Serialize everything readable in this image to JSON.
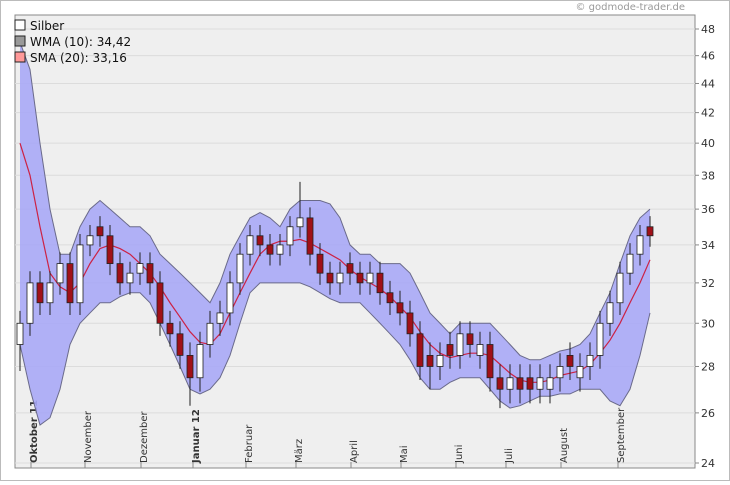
{
  "chart_data": {
    "type": "candlestick",
    "watermark": "© godmode-trader.de",
    "legend": "top-left",
    "log_scale": true,
    "grid": true,
    "ylim": [
      24,
      48
    ],
    "yticks": [
      24,
      26,
      28,
      30,
      32,
      34,
      36,
      38,
      40,
      42,
      44,
      46,
      48
    ],
    "xlim": [
      -0.5,
      67.5
    ],
    "xticks": [
      {
        "value": 1.7,
        "label": "Oktober 11",
        "bold": true
      },
      {
        "value": 7.1,
        "label": "November"
      },
      {
        "value": 12.7,
        "label": "Dezember"
      },
      {
        "value": 17.9,
        "label": "Januar 12",
        "bold": true
      },
      {
        "value": 23.2,
        "label": "Februar"
      },
      {
        "value": 28.2,
        "label": "März"
      },
      {
        "value": 33.7,
        "label": "April"
      },
      {
        "value": 38.7,
        "label": "Mai"
      },
      {
        "value": 44.2,
        "label": "Juni"
      },
      {
        "value": 49.2,
        "label": "Juli"
      },
      {
        "value": 54.7,
        "label": "August"
      },
      {
        "value": 60.4,
        "label": "September"
      }
    ],
    "x": [
      0,
      1,
      2,
      3,
      4,
      5,
      6,
      7,
      8,
      9,
      10,
      11,
      12,
      13,
      14,
      15,
      16,
      17,
      18,
      19,
      20,
      21,
      22,
      23,
      24,
      25,
      26,
      27,
      28,
      29,
      30,
      31,
      32,
      33,
      34,
      35,
      36,
      37,
      38,
      39,
      40,
      41,
      42,
      43,
      44,
      45,
      46,
      47,
      48,
      49,
      50,
      51,
      52,
      53,
      54,
      55,
      56,
      57,
      58,
      59,
      60,
      61,
      62,
      63
    ],
    "candles": {
      "name": "Silber",
      "color": "#ffffff",
      "down_color": "#a01018",
      "open": [
        29,
        30,
        32,
        31,
        32,
        33,
        31,
        34,
        35,
        34.5,
        33,
        32,
        32.5,
        33,
        32,
        30,
        29.5,
        28.5,
        27.5,
        29,
        30,
        30.5,
        32,
        33.5,
        34.5,
        34,
        33.5,
        34,
        35,
        35.5,
        33.5,
        32.5,
        32,
        33,
        32.5,
        32,
        32.5,
        31.5,
        31,
        30.5,
        29.5,
        28.5,
        28,
        29,
        28.5,
        29.5,
        28.5,
        29,
        27.5,
        27,
        27.5,
        27.5,
        27,
        27,
        27.5,
        28.5,
        27.5,
        28,
        28.5,
        30,
        31,
        32.5,
        33.5,
        35
      ],
      "high": [
        30.6,
        32.6,
        32.6,
        32.6,
        33.6,
        33.6,
        34.6,
        35.1,
        35.6,
        35.1,
        33.6,
        33.1,
        33.6,
        33.6,
        32.6,
        30.6,
        30.1,
        29.1,
        29.6,
        30.6,
        31.1,
        32.6,
        34.1,
        35.1,
        35.1,
        34.6,
        34.6,
        35.6,
        37.6,
        36.1,
        34.1,
        33.1,
        33.1,
        33.6,
        33.1,
        33.1,
        33.1,
        32.1,
        31.6,
        31.1,
        30.1,
        29.1,
        29.1,
        29.6,
        30.1,
        30.1,
        29.6,
        29.6,
        28.1,
        28.1,
        28.1,
        28.1,
        28.1,
        28.1,
        28.6,
        29.1,
        28.6,
        29.1,
        30.6,
        31.6,
        33.1,
        34.1,
        35.1,
        35.6
      ],
      "low": [
        27.8,
        29.4,
        30.4,
        30.4,
        31.4,
        30.4,
        30.4,
        33.4,
        33.9,
        32.4,
        31.4,
        31.4,
        31.9,
        31.4,
        29.4,
        28.9,
        27.9,
        26.3,
        26.9,
        28.4,
        29.4,
        29.9,
        31.4,
        32.9,
        33.4,
        32.9,
        32.9,
        33.4,
        34.4,
        32.9,
        31.9,
        31.4,
        31.4,
        31.9,
        31.4,
        31.4,
        30.9,
        30.4,
        29.9,
        28.9,
        27.4,
        27.0,
        27.4,
        27.9,
        27.9,
        28.4,
        27.9,
        26.9,
        26.2,
        26.4,
        26.4,
        26.4,
        26.4,
        26.4,
        26.9,
        27.4,
        26.9,
        27.4,
        27.9,
        29.4,
        30.4,
        31.9,
        32.9,
        33.9
      ],
      "close": [
        30,
        32,
        31,
        32,
        33,
        31,
        34,
        34.5,
        34.5,
        33,
        32,
        32.5,
        33,
        32,
        30,
        29.5,
        28.5,
        27.5,
        29,
        30,
        30.5,
        32,
        33.5,
        34.5,
        34,
        33.5,
        34,
        35,
        35.5,
        33.5,
        32.5,
        32,
        32.5,
        32.5,
        32,
        32.5,
        31.5,
        31,
        30.5,
        29.5,
        28,
        28,
        28.5,
        28.5,
        29.5,
        29,
        29,
        27.5,
        27,
        27.5,
        27,
        27,
        27.5,
        27.5,
        28,
        28,
        28,
        28.5,
        30,
        31,
        32.5,
        33.5,
        34.5,
        34.5
      ]
    },
    "band": {
      "name": "WMA (10): 34,42",
      "color": "#999999",
      "fill": "#a8a8f6",
      "stroke": "#6a6a8a",
      "upper": [
        47,
        45,
        40,
        36,
        33.5,
        33.5,
        35,
        36,
        36.5,
        36,
        35.5,
        35,
        35,
        34.5,
        33.5,
        33,
        32.5,
        32,
        31.5,
        31,
        32,
        33.5,
        34.5,
        35.5,
        35.8,
        35.5,
        35,
        36,
        36.5,
        36.5,
        36.5,
        36.3,
        35.5,
        34,
        33.5,
        33.5,
        33,
        33,
        33,
        32.5,
        31.5,
        30.5,
        30,
        29.5,
        30,
        30,
        30,
        30,
        29.5,
        29,
        28.5,
        28.3,
        28.3,
        28.5,
        28.7,
        28.8,
        29,
        29.5,
        30.5,
        31.5,
        33,
        34.5,
        35.5,
        36
      ],
      "lower": [
        29,
        27,
        25.5,
        25.8,
        27,
        29,
        30,
        30.5,
        31,
        31,
        31.3,
        31.5,
        31.5,
        31,
        30,
        29,
        28,
        27,
        26.8,
        27,
        27.5,
        28.5,
        30,
        31.5,
        32,
        32,
        32,
        32,
        32,
        31.8,
        31.5,
        31.2,
        31,
        31,
        31,
        30.5,
        30,
        29.5,
        29,
        28.3,
        27.5,
        27,
        27,
        27.3,
        27.5,
        27.5,
        27.5,
        27,
        26.5,
        26.2,
        26.3,
        26.5,
        26.7,
        26.7,
        26.8,
        26.8,
        27,
        27,
        27,
        26.5,
        26.3,
        27,
        28.5,
        30.5
      ]
    },
    "sma": {
      "name": "SMA (20): 33,16",
      "color": "#ff9999",
      "line_color": "#cc2244",
      "values": [
        40,
        38,
        35,
        32.5,
        31.8,
        31.5,
        32,
        33,
        33.8,
        34,
        33.8,
        33.5,
        33,
        32.5,
        31.8,
        31,
        30.3,
        29.6,
        29.1,
        29,
        29.5,
        30.5,
        31.5,
        32.5,
        33.5,
        34,
        34.2,
        34.2,
        34.3,
        34.1,
        33.8,
        33.5,
        33.2,
        32.7,
        32.3,
        32,
        31.7,
        31.3,
        30.8,
        30.3,
        29.6,
        29,
        28.6,
        28.4,
        28.5,
        28.6,
        28.6,
        28.5,
        28.1,
        27.7,
        27.4,
        27.3,
        27.3,
        27.4,
        27.6,
        27.7,
        27.8,
        28.1,
        28.6,
        29.2,
        30,
        31,
        32,
        33.2
      ]
    }
  }
}
